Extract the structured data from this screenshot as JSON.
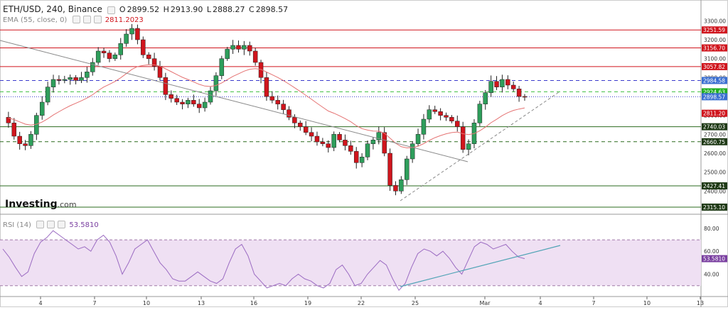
{
  "header": {
    "symbol": "ETH/USD, 240, Binance",
    "ohlc": [
      {
        "label": "O",
        "value": "2899.52"
      },
      {
        "label": "H",
        "value": "2913.90"
      },
      {
        "label": "L",
        "value": "2888.27"
      },
      {
        "label": "C",
        "value": "2898.57"
      }
    ],
    "ema_label": "EMA (55, close, 0)",
    "ema_value": "2811.2023",
    "rsi_label": "RSI (14)",
    "rsi_value": "53.5810"
  },
  "logo": {
    "brand": "Investing",
    "suffix": ".com"
  },
  "colors": {
    "bull": "#2e9e5b",
    "bear": "#d0151d",
    "ema": "#e57373",
    "rsi_line": "#9b6bc2",
    "rsi_band": "#efe0f3",
    "hline_red": "#d0151d",
    "hline_green": "#2b6b1f",
    "hline_blue": "#3b3bcc",
    "trend_up": "#4fa3b5"
  },
  "chart_data": [
    {
      "type": "candlestick",
      "title": "ETH/USD, 240, Binance",
      "ylim": [
        2300,
        3350
      ],
      "y_ticks": [
        2400,
        2500,
        2600,
        2700,
        2800,
        2900,
        3000,
        3100,
        3200,
        3300
      ],
      "x_ticks": [
        "4",
        "7",
        "10",
        "13",
        "16",
        "19",
        "22",
        "25",
        "Mar",
        "4",
        "7",
        "10",
        "13"
      ],
      "ema_value": 2811.2,
      "horizontal_levels": [
        {
          "value": 3251.59,
          "label": "3251.59",
          "color": "red",
          "style": "solid"
        },
        {
          "value": 3156.7,
          "label": "3156.70",
          "color": "red",
          "style": "solid"
        },
        {
          "value": 3057.82,
          "label": "3057.82",
          "color": "red",
          "style": "solid"
        },
        {
          "value": 2984.58,
          "label": "2984.58",
          "color": "blue",
          "style": "dashed"
        },
        {
          "value": 2924.63,
          "label": "2924.63",
          "color": "green",
          "style": "dashed"
        },
        {
          "value": 2898.57,
          "label": "2898.57",
          "color": "blue",
          "style": "dotted"
        },
        {
          "value": 2811.2,
          "label": "2811.20",
          "color": "red",
          "style": "ema"
        },
        {
          "value": 2740.03,
          "label": "2740.03",
          "color": "darkgreen",
          "style": "solid"
        },
        {
          "value": 2660.75,
          "label": "2660.75",
          "color": "darkgreen",
          "style": "dashed"
        },
        {
          "value": 2427.41,
          "label": "2427.41",
          "color": "darkgreen",
          "style": "solid"
        },
        {
          "value": 2315.1,
          "label": "2315.10",
          "color": "darkgreen",
          "style": "solid"
        }
      ],
      "price_path": [
        2790,
        2760,
        2690,
        2650,
        2640,
        2700,
        2800,
        2870,
        2950,
        2990,
        2985,
        2990,
        3000,
        2985,
        3000,
        3030,
        3080,
        3140,
        3130,
        3100,
        3120,
        3180,
        3230,
        3260,
        3200,
        3120,
        3100,
        3060,
        3000,
        2910,
        2890,
        2870,
        2860,
        2880,
        2860,
        2840,
        2870,
        2930,
        3010,
        3100,
        3150,
        3170,
        3150,
        3170,
        3140,
        3080,
        3000,
        2900,
        2880,
        2860,
        2830,
        2790,
        2760,
        2740,
        2710,
        2690,
        2660,
        2650,
        2630,
        2700,
        2670,
        2640,
        2610,
        2550,
        2580,
        2650,
        2670,
        2710,
        2600,
        2430,
        2400,
        2460,
        2570,
        2650,
        2700,
        2780,
        2830,
        2820,
        2800,
        2790,
        2770,
        2740,
        2620,
        2650,
        2760,
        2860,
        2920,
        2980,
        2950,
        2990,
        2960,
        2940,
        2900,
        2898.57
      ],
      "trendlines": [
        {
          "name": "descending",
          "from": "4",
          "to": "25"
        },
        {
          "name": "ascending",
          "from": "25",
          "to": "Mar"
        }
      ]
    },
    {
      "type": "line",
      "title": "RSI (14)",
      "ylim": [
        23,
        88
      ],
      "y_ticks": [
        40,
        60,
        80
      ],
      "overbought": 70,
      "oversold": 30,
      "current": 53.581,
      "values": [
        62,
        55,
        46,
        38,
        42,
        58,
        68,
        72,
        78,
        74,
        70,
        66,
        62,
        64,
        60,
        70,
        74,
        68,
        56,
        40,
        50,
        62,
        66,
        70,
        60,
        50,
        44,
        36,
        34,
        34,
        38,
        42,
        38,
        34,
        32,
        36,
        50,
        62,
        66,
        56,
        40,
        34,
        28,
        30,
        32,
        30,
        36,
        40,
        36,
        34,
        30,
        28,
        32,
        44,
        48,
        40,
        30,
        32,
        40,
        46,
        52,
        48,
        36,
        26,
        32,
        46,
        58,
        62,
        60,
        56,
        60,
        54,
        46,
        40,
        52,
        64,
        68,
        66,
        62,
        64,
        66,
        60,
        55,
        53.58
      ]
    }
  ]
}
